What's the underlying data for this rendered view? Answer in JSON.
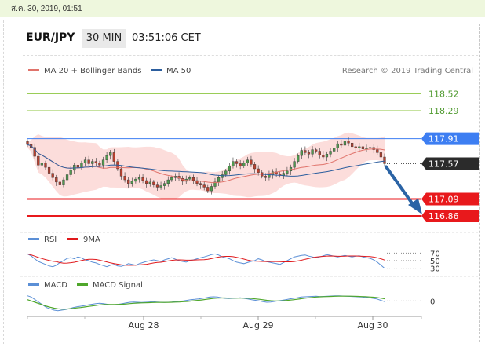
{
  "header": {
    "date": "ส.ค. 30, 2019, 01:51",
    "symbol": "EUR/JPY",
    "timeframe": "30 MIN",
    "time": "03:51:06 CET"
  },
  "legend": {
    "ma20": "MA 20 + Bollinger Bands",
    "ma50": "MA 50",
    "research": "Research © 2019 Trading Central"
  },
  "colors": {
    "ma20": "#e0736b",
    "ma50": "#2c5e9e",
    "bollinger": "#fbd5d2",
    "candle_up": "#4f9a4f",
    "candle_down": "#b8402e",
    "support": "#e8191c",
    "current": "#2b2b2b",
    "resistance_near": "#3d7ef2",
    "resistance_far": "#8cc63f",
    "arrow": "#2a63a5",
    "rsi": "#5b8fd6",
    "rsi_ma": "#e0191c",
    "macd": "#5b8fd6",
    "macd_signal": "#4fa72b"
  },
  "chart_data": [
    {
      "type": "line",
      "title": "EUR/JPY 30 MIN",
      "series": [
        {
          "name": "MA 20 + Bollinger Bands"
        },
        {
          "name": "MA 50"
        }
      ],
      "ylim": [
        116.7,
        118.62
      ],
      "x_ticks": [
        "Aug 28",
        "Aug 29",
        "Aug 30"
      ],
      "levels": [
        {
          "label": "118.52",
          "value": 118.52,
          "kind": "resistance"
        },
        {
          "label": "118.29",
          "value": 118.29,
          "kind": "resistance"
        },
        {
          "label": "117.91",
          "value": 117.91,
          "kind": "resistance"
        },
        {
          "label": "117.57",
          "value": 117.57,
          "kind": "current"
        },
        {
          "label": "117.09",
          "value": 117.09,
          "kind": "support"
        },
        {
          "label": "116.86",
          "value": 116.86,
          "kind": "support"
        }
      ],
      "close": [
        117.83,
        117.79,
        117.67,
        117.55,
        117.58,
        117.52,
        117.44,
        117.38,
        117.32,
        117.28,
        117.35,
        117.42,
        117.48,
        117.55,
        117.52,
        117.58,
        117.62,
        117.57,
        117.6,
        117.58,
        117.55,
        117.62,
        117.68,
        117.72,
        117.6,
        117.5,
        117.4,
        117.35,
        117.3,
        117.33,
        117.36,
        117.38,
        117.34,
        117.3,
        117.32,
        117.28,
        117.25,
        117.27,
        117.3,
        117.35,
        117.38,
        117.4,
        117.37,
        117.33,
        117.36,
        117.38,
        117.34,
        117.3,
        117.28,
        117.25,
        117.2,
        117.26,
        117.32,
        117.38,
        117.42,
        117.47,
        117.54,
        117.6,
        117.57,
        117.54,
        117.58,
        117.62,
        117.56,
        117.5,
        117.45,
        117.4,
        117.38,
        117.42,
        117.46,
        117.43,
        117.41,
        117.44,
        117.47,
        117.52,
        117.6,
        117.68,
        117.75,
        117.72,
        117.7,
        117.76,
        117.74,
        117.69,
        117.66,
        117.7,
        117.74,
        117.78,
        117.84,
        117.82,
        117.88,
        117.85,
        117.8,
        117.78,
        117.8,
        117.77,
        117.78,
        117.79,
        117.76,
        117.72,
        117.66,
        117.57
      ]
    },
    {
      "type": "line",
      "title": "RSI",
      "series": [
        {
          "name": "RSI"
        },
        {
          "name": "9MA"
        }
      ],
      "y_ticks": [
        30,
        50,
        70
      ],
      "ylim": [
        25,
        75
      ],
      "values": [
        68,
        63,
        55,
        48,
        44,
        40,
        36,
        34,
        38,
        45,
        50,
        56,
        58,
        55,
        60,
        57,
        52,
        50,
        46,
        44,
        40,
        37,
        34,
        38,
        40,
        36,
        35,
        38,
        42,
        40,
        38,
        42,
        45,
        48,
        50,
        52,
        50,
        48,
        52,
        55,
        58,
        54,
        50,
        48,
        46,
        50,
        52,
        55,
        58,
        60,
        63,
        66,
        68,
        65,
        60,
        58,
        55,
        50,
        46,
        44,
        42,
        45,
        48,
        50,
        55,
        52,
        48,
        46,
        44,
        42,
        40,
        45,
        50,
        55,
        60,
        62,
        64,
        65,
        62,
        60,
        58,
        60,
        63,
        66,
        64,
        62,
        60,
        62,
        64,
        62,
        60,
        62,
        63,
        60,
        58,
        56,
        52,
        46,
        38,
        30
      ]
    },
    {
      "type": "line",
      "title": "MACD",
      "series": [
        {
          "name": "MACD"
        },
        {
          "name": "MACD Signal"
        }
      ],
      "y_ticks": [
        0
      ],
      "ylim": [
        -0.1,
        0.08
      ],
      "values": [
        0.04,
        0.03,
        0.01,
        -0.01,
        -0.03,
        -0.05,
        -0.06,
        -0.07,
        -0.075,
        -0.07,
        -0.065,
        -0.06,
        -0.05,
        -0.045,
        -0.04,
        -0.035,
        -0.03,
        -0.025,
        -0.02,
        -0.018,
        -0.02,
        -0.025,
        -0.03,
        -0.028,
        -0.025,
        -0.02,
        -0.015,
        -0.01,
        -0.008,
        -0.01,
        -0.012,
        -0.01,
        -0.008,
        -0.006,
        -0.008,
        -0.01,
        -0.012,
        -0.01,
        -0.008,
        -0.005,
        -0.002,
        0.0,
        0.005,
        0.01,
        0.012,
        0.015,
        0.02,
        0.025,
        0.03,
        0.032,
        0.03,
        0.025,
        0.02,
        0.018,
        0.02,
        0.022,
        0.025,
        0.02,
        0.015,
        0.01,
        0.005,
        0.0,
        -0.005,
        -0.01,
        -0.008,
        -0.004,
        0.0,
        0.005,
        0.01,
        0.015,
        0.02,
        0.025,
        0.03,
        0.032,
        0.034,
        0.035,
        0.036,
        0.034,
        0.035,
        0.036,
        0.038,
        0.04,
        0.04,
        0.038,
        0.036,
        0.035,
        0.034,
        0.032,
        0.03,
        0.028,
        0.025,
        0.02,
        0.015,
        0.005,
        -0.005
      ],
      "signal": [
        0.01,
        0.0,
        -0.01,
        -0.02,
        -0.03,
        -0.04,
        -0.048,
        -0.055,
        -0.06,
        -0.062,
        -0.062,
        -0.06,
        -0.057,
        -0.053,
        -0.05,
        -0.046,
        -0.042,
        -0.038,
        -0.034,
        -0.03,
        -0.028,
        -0.027,
        -0.027,
        -0.027,
        -0.026,
        -0.025,
        -0.023,
        -0.02,
        -0.018,
        -0.016,
        -0.015,
        -0.014,
        -0.013,
        -0.012,
        -0.011,
        -0.011,
        -0.011,
        -0.011,
        -0.01,
        -0.009,
        -0.008,
        -0.006,
        -0.004,
        -0.001,
        0.002,
        0.005,
        0.008,
        0.012,
        0.016,
        0.02,
        0.022,
        0.023,
        0.023,
        0.022,
        0.022,
        0.022,
        0.022,
        0.022,
        0.021,
        0.019,
        0.016,
        0.013,
        0.009,
        0.005,
        0.002,
        0.0,
        0.0,
        0.001,
        0.003,
        0.006,
        0.009,
        0.013,
        0.017,
        0.021,
        0.024,
        0.027,
        0.03,
        0.032,
        0.033,
        0.034,
        0.035,
        0.036,
        0.037,
        0.037,
        0.037,
        0.037,
        0.036,
        0.035,
        0.034,
        0.033,
        0.031,
        0.029,
        0.026,
        0.022,
        0.017
      ]
    }
  ]
}
